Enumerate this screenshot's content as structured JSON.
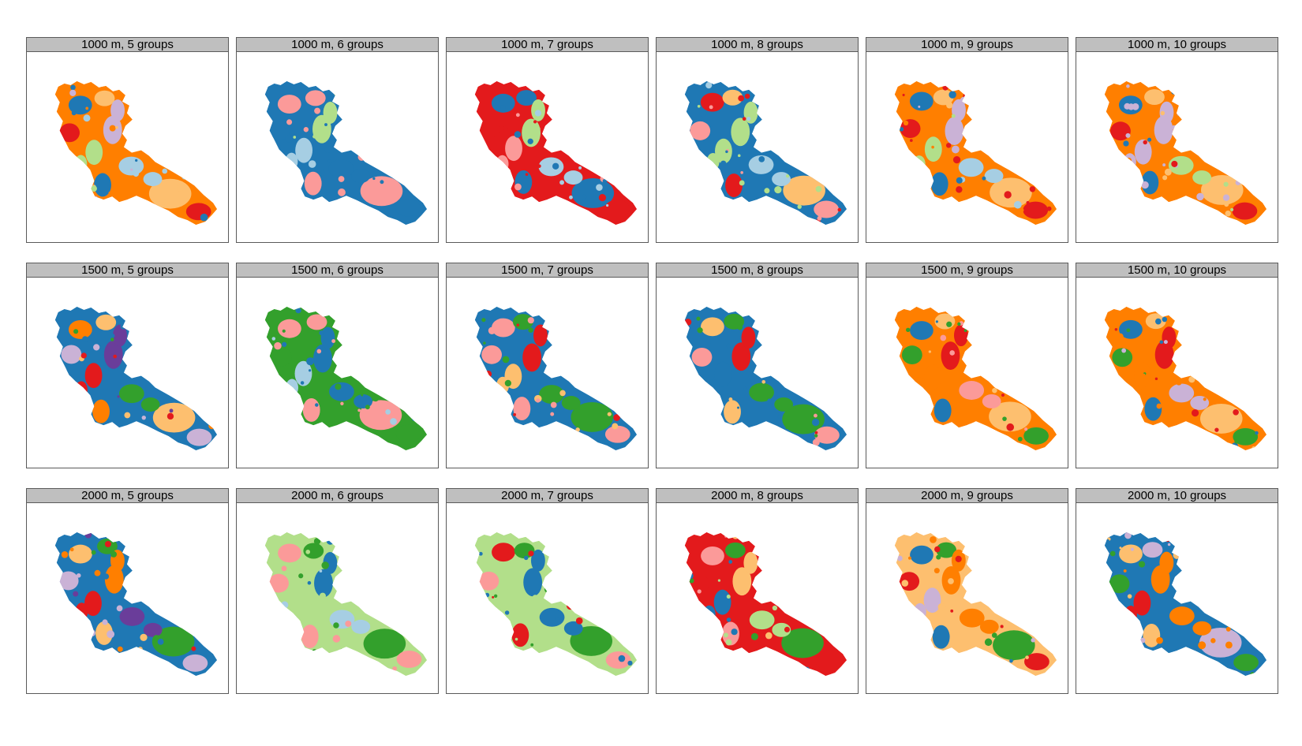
{
  "figure": {
    "panels": [
      {
        "title": "1000 m, 5 groups",
        "palette": [
          "#ff7f00",
          "#1f78b4",
          "#fdbf6f",
          "#e31a1c",
          "#cab2d6",
          "#b2df8a",
          "#a6cee3"
        ]
      },
      {
        "title": "1000 m, 6 groups",
        "palette": [
          "#1f78b4",
          "#fb9a99",
          "#fb9a99",
          "#1f78b4",
          "#b2df8a",
          "#a6cee3",
          "#1f78b4"
        ]
      },
      {
        "title": "1000 m, 7 groups",
        "palette": [
          "#e31a1c",
          "#1f78b4",
          "#1f78b4",
          "#e31a1c",
          "#b2df8a",
          "#fb9a99",
          "#a6cee3"
        ]
      },
      {
        "title": "1000 m, 8 groups",
        "palette": [
          "#1f78b4",
          "#e31a1c",
          "#fdbf6f",
          "#fb9a99",
          "#b2df8a",
          "#b2df8a",
          "#a6cee3"
        ]
      },
      {
        "title": "1000 m, 9 groups",
        "palette": [
          "#ff7f00",
          "#1f78b4",
          "#fdbf6f",
          "#e31a1c",
          "#cab2d6",
          "#b2df8a",
          "#a6cee3"
        ]
      },
      {
        "title": "1000 m, 10 groups",
        "palette": [
          "#ff7f00",
          "#1f78b4",
          "#fdbf6f",
          "#e31a1c",
          "#cab2d6",
          "#cab2d6",
          "#b2df8a"
        ]
      },
      {
        "title": "1500 m, 5 groups",
        "palette": [
          "#1f78b4",
          "#ff7f00",
          "#fdbf6f",
          "#cab2d6",
          "#6a3d9a",
          "#e31a1c",
          "#33a02c"
        ]
      },
      {
        "title": "1500 m, 6 groups",
        "palette": [
          "#33a02c",
          "#fb9a99",
          "#fb9a99",
          "#33a02c",
          "#1f78b4",
          "#a6cee3",
          "#1f78b4"
        ]
      },
      {
        "title": "1500 m, 7 groups",
        "palette": [
          "#1f78b4",
          "#fb9a99",
          "#33a02c",
          "#fb9a99",
          "#e31a1c",
          "#fdbf6f",
          "#33a02c"
        ]
      },
      {
        "title": "1500 m, 8 groups",
        "palette": [
          "#1f78b4",
          "#fdbf6f",
          "#33a02c",
          "#fb9a99",
          "#e31a1c",
          "#1f78b4",
          "#33a02c"
        ]
      },
      {
        "title": "1500 m, 9 groups",
        "palette": [
          "#ff7f00",
          "#1f78b4",
          "#fdbf6f",
          "#33a02c",
          "#e31a1c",
          "#ff7f00",
          "#fb9a99"
        ]
      },
      {
        "title": "1500 m, 10 groups",
        "palette": [
          "#ff7f00",
          "#1f78b4",
          "#fdbf6f",
          "#33a02c",
          "#e31a1c",
          "#ff7f00",
          "#cab2d6"
        ]
      },
      {
        "title": "2000 m, 5 groups",
        "palette": [
          "#1f78b4",
          "#fdbf6f",
          "#33a02c",
          "#cab2d6",
          "#ff7f00",
          "#e31a1c",
          "#6a3d9a"
        ]
      },
      {
        "title": "2000 m, 6 groups",
        "palette": [
          "#b2df8a",
          "#fb9a99",
          "#33a02c",
          "#fb9a99",
          "#1f78b4",
          "#b2df8a",
          "#a6cee3"
        ]
      },
      {
        "title": "2000 m, 7 groups",
        "palette": [
          "#b2df8a",
          "#e31a1c",
          "#33a02c",
          "#fb9a99",
          "#1f78b4",
          "#b2df8a",
          "#1f78b4"
        ]
      },
      {
        "title": "2000 m, 8 groups",
        "palette": [
          "#e31a1c",
          "#fb9a99",
          "#33a02c",
          "#e31a1c",
          "#fdbf6f",
          "#1f78b4",
          "#b2df8a"
        ]
      },
      {
        "title": "2000 m, 9 groups",
        "palette": [
          "#fdbf6f",
          "#1f78b4",
          "#33a02c",
          "#e31a1c",
          "#ff7f00",
          "#cab2d6",
          "#ff7f00"
        ]
      },
      {
        "title": "2000 m, 10 groups",
        "palette": [
          "#1f78b4",
          "#fdbf6f",
          "#cab2d6",
          "#33a02c",
          "#ff7f00",
          "#e31a1c",
          "#ff7f00"
        ]
      }
    ]
  }
}
